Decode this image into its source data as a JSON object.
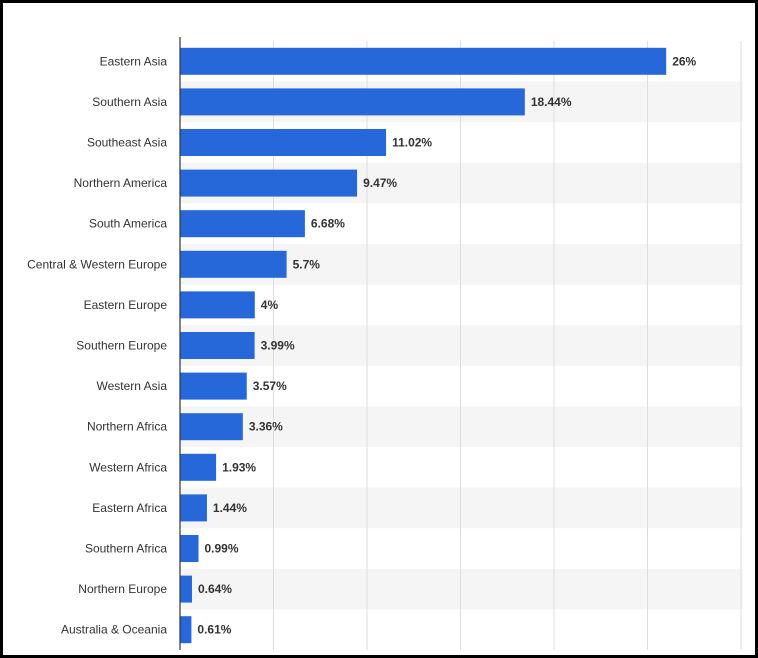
{
  "chart_data": {
    "type": "bar",
    "orientation": "horizontal",
    "categories": [
      "Eastern Asia",
      "Southern Asia",
      "Southeast Asia",
      "Northern America",
      "South America",
      "Central & Western Europe",
      "Eastern Europe",
      "Southern Europe",
      "Western Asia",
      "Northern Africa",
      "Western Africa",
      "Eastern Africa",
      "Southern Africa",
      "Northern Europe",
      "Australia & Oceania"
    ],
    "values": [
      26,
      18.44,
      11.02,
      9.47,
      6.68,
      5.7,
      4,
      3.99,
      3.57,
      3.36,
      1.93,
      1.44,
      0.99,
      0.64,
      0.61
    ],
    "value_labels": [
      "26%",
      "18.44%",
      "11.02%",
      "9.47%",
      "6.68%",
      "5.7%",
      "4%",
      "3.99%",
      "3.57%",
      "3.36%",
      "1.93%",
      "1.44%",
      "0.99%",
      "0.64%",
      "0.61%"
    ],
    "title": "",
    "xlabel": "",
    "ylabel": "",
    "xlim": [
      0,
      30
    ],
    "grid": true,
    "legend": "none",
    "colors": {
      "bar": "#2668d9",
      "grid": "#dddddd",
      "band": "#f5f5f5",
      "axis": "#333333"
    }
  }
}
